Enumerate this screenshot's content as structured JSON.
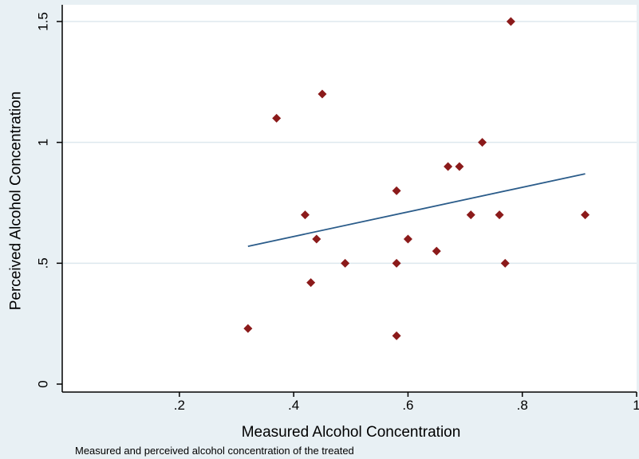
{
  "chart_data": {
    "type": "scatter",
    "xlabel": "Measured Alcohol Concentration",
    "ylabel": "Perceived Alcohol Concentration",
    "note": "Measured and perceived alcohol concentration of the treated",
    "xlim": [
      0,
      1
    ],
    "ylim": [
      0,
      1.5
    ],
    "x_ticks": [
      0.2,
      0.4,
      0.6,
      0.8,
      1
    ],
    "x_tick_labels": [
      ".2",
      ".4",
      ".6",
      ".8",
      "1"
    ],
    "y_ticks": [
      0,
      0.5,
      1,
      1.5
    ],
    "y_tick_labels": [
      "0",
      ".5",
      "1",
      "1.5"
    ],
    "grid": true,
    "points": [
      {
        "x": 0.32,
        "y": 0.23
      },
      {
        "x": 0.37,
        "y": 1.1
      },
      {
        "x": 0.42,
        "y": 0.7
      },
      {
        "x": 0.43,
        "y": 0.42
      },
      {
        "x": 0.44,
        "y": 0.6
      },
      {
        "x": 0.45,
        "y": 1.2
      },
      {
        "x": 0.49,
        "y": 0.5
      },
      {
        "x": 0.58,
        "y": 0.8
      },
      {
        "x": 0.58,
        "y": 0.5
      },
      {
        "x": 0.58,
        "y": 0.2
      },
      {
        "x": 0.6,
        "y": 0.6
      },
      {
        "x": 0.65,
        "y": 0.55
      },
      {
        "x": 0.67,
        "y": 0.9
      },
      {
        "x": 0.69,
        "y": 0.9
      },
      {
        "x": 0.71,
        "y": 0.7
      },
      {
        "x": 0.73,
        "y": 1.0
      },
      {
        "x": 0.76,
        "y": 0.7
      },
      {
        "x": 0.77,
        "y": 0.5
      },
      {
        "x": 0.78,
        "y": 1.5
      },
      {
        "x": 0.91,
        "y": 0.7
      }
    ],
    "fit_line": {
      "x": [
        0.32,
        0.91
      ],
      "y": [
        0.57,
        0.87
      ]
    },
    "colors": {
      "points": "#8b1a1a",
      "fit_line": "#2b5c8a",
      "grid": "#dde8ee",
      "plot_bg": "#ffffff",
      "page_bg": "#e8f0f4"
    }
  }
}
